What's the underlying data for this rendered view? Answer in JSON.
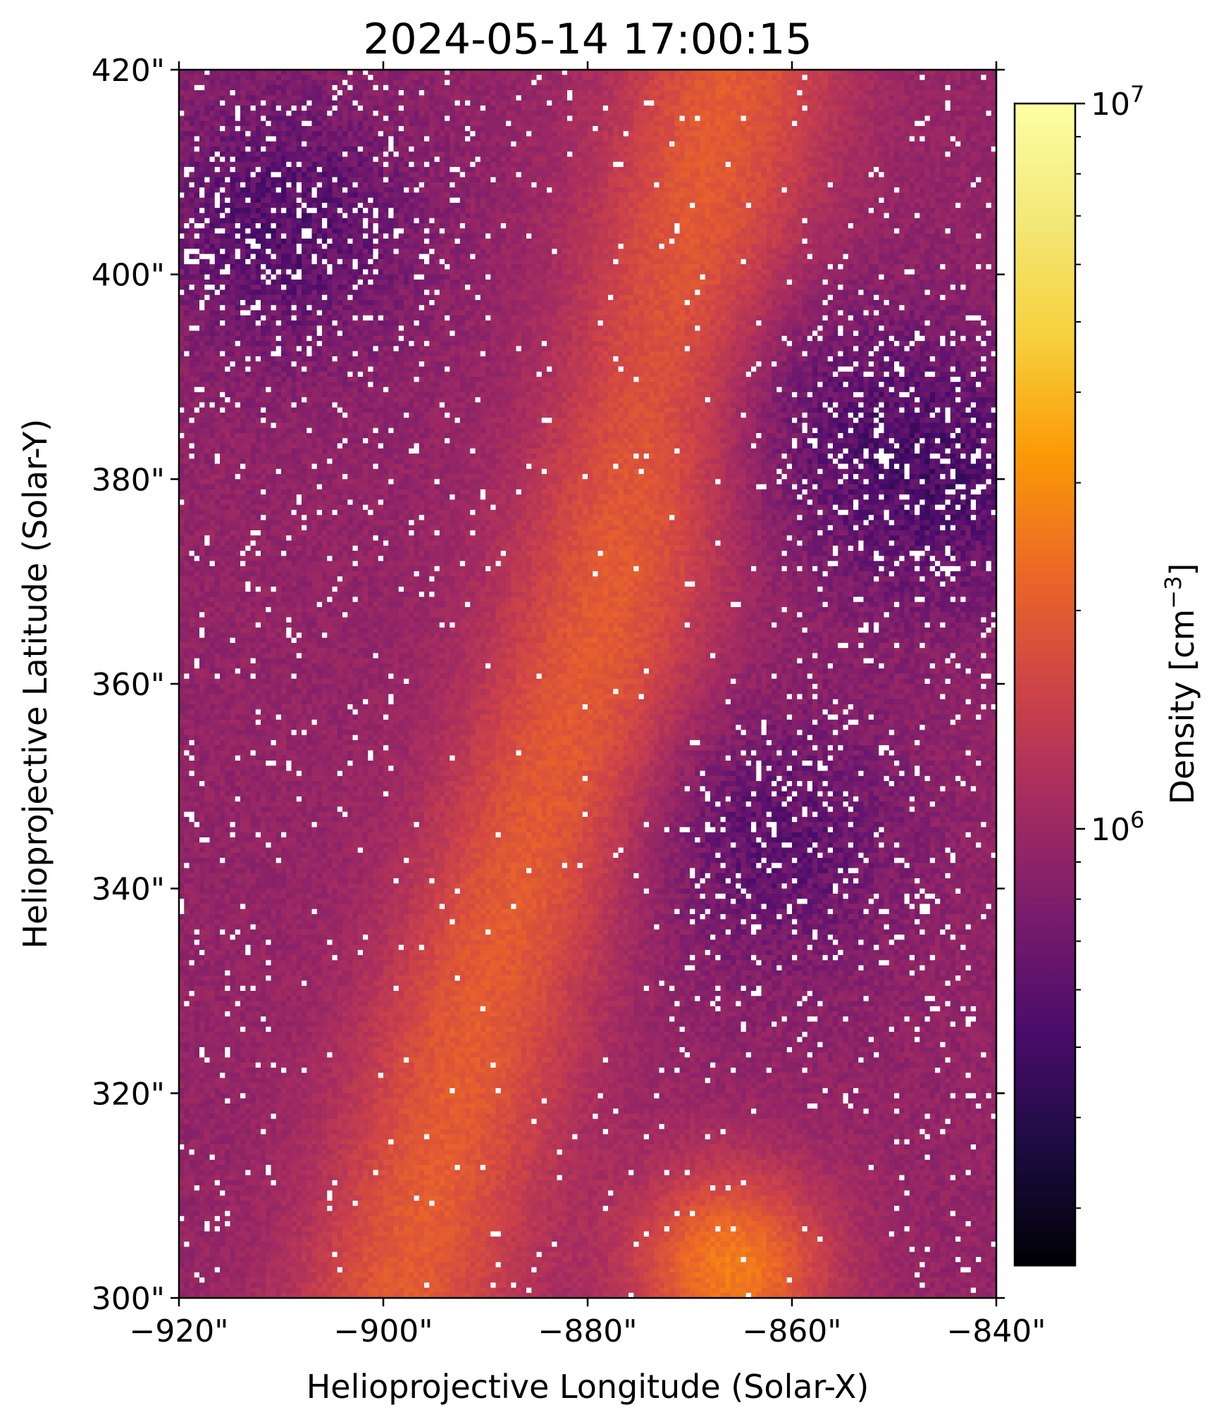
{
  "chart_data": {
    "type": "heatmap",
    "title": "2024-05-14 17:00:15",
    "xlabel": "Helioprojective Longitude (Solar-X)",
    "ylabel": "Helioprojective Latitude (Solar-Y)",
    "xlim": [
      -920,
      -840
    ],
    "ylim": [
      300,
      420
    ],
    "x_ticks": [
      -920,
      -900,
      -880,
      -860,
      -840
    ],
    "x_tick_labels": [
      "−920\"",
      "−900\"",
      "−880\"",
      "−860\"",
      "−840\""
    ],
    "y_ticks": [
      300,
      320,
      340,
      360,
      380,
      400,
      420
    ],
    "y_tick_labels": [
      "300\"",
      "320\"",
      "340\"",
      "360\"",
      "380\"",
      "400\"",
      "420\""
    ],
    "colorscale": "inferno",
    "colorbar": {
      "label": "Density [cm",
      "label_sup": "−3",
      "label_close": "]",
      "scale": "log",
      "range": [
        250000,
        10000000
      ],
      "major_ticks": [
        {
          "value": 1000000,
          "base": "10",
          "exp": "6"
        },
        {
          "value": 10000000,
          "base": "10",
          "exp": "7"
        }
      ],
      "minor_ticks": [
        300000,
        400000,
        500000,
        600000,
        700000,
        800000,
        900000,
        2000000,
        3000000,
        4000000,
        5000000,
        6000000,
        7000000,
        8000000,
        9000000
      ]
    },
    "features": [
      {
        "description": "enhanced density ridge",
        "points": [
          [
            -898,
            300
          ],
          [
            -890,
            330
          ],
          [
            -880,
            360
          ],
          [
            -872,
            390
          ],
          [
            -866,
            420
          ]
        ],
        "log10_value": 6.3
      },
      {
        "description": "enhanced density blob",
        "center": [
          -866,
          303
        ],
        "log10_value": 6.42
      },
      {
        "description": "low density region",
        "center": [
          -910,
          405
        ],
        "log10_value": 5.75
      },
      {
        "description": "low density region",
        "center": [
          -862,
          345
        ],
        "log10_value": 5.78
      },
      {
        "description": "low density region",
        "center": [
          -845,
          380
        ],
        "log10_value": 5.75
      },
      {
        "description": "low density region",
        "center": [
          -860,
          388
        ],
        "log10_value": 5.82
      }
    ]
  }
}
